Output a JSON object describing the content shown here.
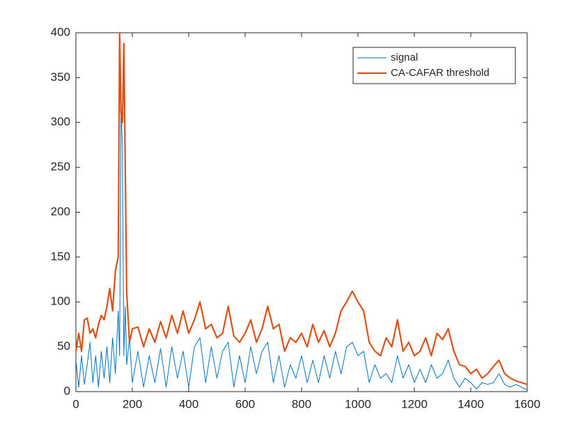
{
  "chart_data": {
    "type": "line",
    "x": [
      0,
      10,
      20,
      30,
      40,
      50,
      60,
      70,
      80,
      90,
      100,
      110,
      120,
      130,
      140,
      150,
      155,
      160,
      165,
      170,
      175,
      180,
      190,
      200,
      220,
      240,
      260,
      280,
      300,
      320,
      340,
      360,
      380,
      400,
      420,
      440,
      460,
      480,
      500,
      520,
      540,
      560,
      580,
      600,
      620,
      640,
      660,
      680,
      700,
      720,
      740,
      760,
      780,
      800,
      820,
      840,
      860,
      880,
      900,
      920,
      940,
      960,
      980,
      1000,
      1020,
      1040,
      1060,
      1080,
      1100,
      1120,
      1140,
      1160,
      1180,
      1200,
      1220,
      1240,
      1260,
      1280,
      1300,
      1320,
      1340,
      1360,
      1380,
      1400,
      1420,
      1440,
      1460,
      1480,
      1500,
      1520,
      1540,
      1560,
      1580,
      1600
    ],
    "series": [
      {
        "name": "signal",
        "color": "#0072BD",
        "values": [
          35,
          5,
          40,
          8,
          30,
          55,
          10,
          40,
          5,
          45,
          15,
          50,
          10,
          60,
          20,
          90,
          40,
          325,
          270,
          40,
          95,
          30,
          60,
          10,
          45,
          5,
          40,
          10,
          48,
          5,
          50,
          15,
          45,
          5,
          50,
          60,
          10,
          50,
          15,
          45,
          55,
          5,
          40,
          10,
          50,
          20,
          45,
          55,
          10,
          40,
          5,
          30,
          15,
          40,
          10,
          35,
          10,
          40,
          15,
          45,
          20,
          50,
          55,
          40,
          45,
          10,
          30,
          15,
          20,
          10,
          40,
          15,
          30,
          10,
          25,
          10,
          30,
          15,
          20,
          35,
          15,
          5,
          15,
          10,
          3,
          10,
          8,
          10,
          20,
          8,
          5,
          8,
          5,
          2
        ]
      },
      {
        "name": "CA-CAFAR threshold",
        "color": "#D95319",
        "values": [
          45,
          65,
          45,
          80,
          82,
          65,
          70,
          60,
          75,
          85,
          80,
          95,
          115,
          90,
          135,
          150,
          400,
          310,
          300,
          388,
          250,
          110,
          55,
          70,
          72,
          50,
          70,
          55,
          78,
          60,
          85,
          65,
          90,
          65,
          80,
          100,
          70,
          75,
          60,
          65,
          95,
          62,
          55,
          65,
          80,
          55,
          70,
          95,
          70,
          75,
          45,
          60,
          55,
          65,
          50,
          75,
          55,
          68,
          50,
          65,
          90,
          100,
          112,
          100,
          90,
          55,
          45,
          40,
          60,
          50,
          80,
          45,
          55,
          40,
          45,
          60,
          40,
          65,
          58,
          70,
          45,
          30,
          28,
          20,
          25,
          15,
          20,
          28,
          35,
          20,
          15,
          12,
          10,
          8
        ]
      }
    ],
    "xlim": [
      0,
      1600
    ],
    "xticks": [
      0,
      200,
      400,
      600,
      800,
      1000,
      1200,
      1400,
      1600
    ],
    "ylim": [
      0,
      400
    ],
    "yticks": [
      0,
      50,
      100,
      150,
      200,
      250,
      300,
      350,
      400
    ],
    "legend": "northeast"
  }
}
